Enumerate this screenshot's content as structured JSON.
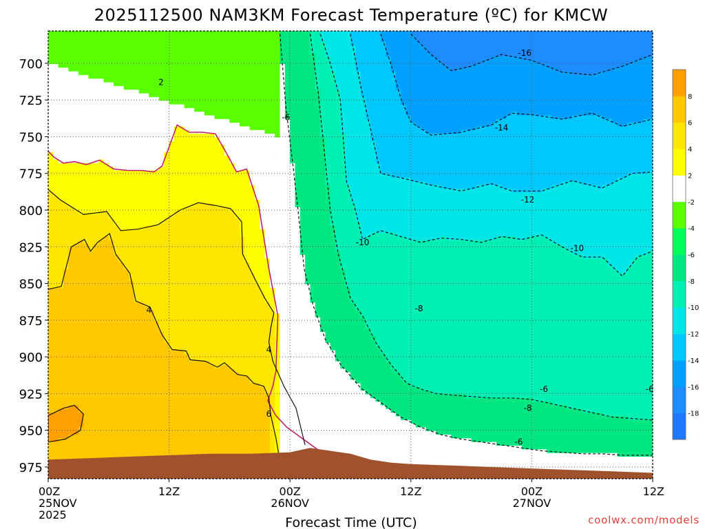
{
  "chart_data": {
    "type": "heatmap",
    "title": "2025112500 NAM3KM Forecast Temperature (ºC) for KMCW",
    "xlabel": "Forecast Time (UTC)",
    "ylabel": "",
    "credit": "coolwx.com/models",
    "x_unit": "hours",
    "xlim": [
      0,
      60
    ],
    "ylim": [
      983,
      678
    ],
    "y_axis": "pressure (hPa), decreasing upward",
    "grid": true,
    "x_ticks": [
      {
        "x": 0,
        "lines": [
          "00Z",
          "25NOV",
          "2025"
        ]
      },
      {
        "x": 12,
        "lines": [
          "12Z"
        ]
      },
      {
        "x": 24,
        "lines": [
          "00Z",
          "26NOV"
        ]
      },
      {
        "x": 36,
        "lines": [
          "12Z"
        ]
      },
      {
        "x": 48,
        "lines": [
          "00Z",
          "27NOV"
        ]
      },
      {
        "x": 60,
        "lines": [
          "12Z"
        ]
      }
    ],
    "y_ticks": [
      700,
      725,
      750,
      775,
      800,
      825,
      850,
      875,
      900,
      925,
      950,
      975
    ],
    "colorbar": {
      "bands": [
        {
          "lo": -20,
          "hi": -18,
          "color": "#1e78ff"
        },
        {
          "lo": -18,
          "hi": -16,
          "color": "#1e8cff"
        },
        {
          "lo": -16,
          "hi": -14,
          "color": "#00a0ff"
        },
        {
          "lo": -14,
          "hi": -12,
          "color": "#00c8ff"
        },
        {
          "lo": -12,
          "hi": -10,
          "color": "#00e6e6"
        },
        {
          "lo": -10,
          "hi": -8,
          "color": "#00f0b4"
        },
        {
          "lo": -8,
          "hi": -6,
          "color": "#00e680"
        },
        {
          "lo": -6,
          "hi": -4,
          "color": "#00ff5a"
        },
        {
          "lo": -4,
          "hi": -2,
          "color": "#5aff00"
        },
        {
          "lo": -2,
          "hi": 2,
          "color": "#ffffff"
        },
        {
          "lo": 2,
          "hi": 4,
          "color": "#ffff00"
        },
        {
          "lo": 4,
          "hi": 6,
          "color": "#ffe600"
        },
        {
          "lo": 6,
          "hi": 8,
          "color": "#ffc800"
        },
        {
          "lo": 8,
          "hi": 10,
          "color": "#ffa000"
        }
      ],
      "tick_labels": [
        "-18",
        "-16",
        "-14",
        "-12",
        "-10",
        "-8",
        "-6",
        "-4",
        "-2",
        "2",
        "4",
        "6",
        "8"
      ]
    },
    "contour_labels": [
      {
        "text": "2",
        "x": 11.2,
        "p": 713
      },
      {
        "text": "-6",
        "x": 23.6,
        "p": 737
      },
      {
        "text": "-16",
        "x": 47.3,
        "p": 693
      },
      {
        "text": "-14",
        "x": 45.0,
        "p": 744
      },
      {
        "text": "-12",
        "x": 47.6,
        "p": 793
      },
      {
        "text": "-10",
        "x": 31.2,
        "p": 822
      },
      {
        "text": "-10",
        "x": 52.5,
        "p": 826
      },
      {
        "text": "-8",
        "x": 36.8,
        "p": 867
      },
      {
        "text": "-6",
        "x": 49.2,
        "p": 922
      },
      {
        "text": "-6",
        "x": 59.7,
        "p": 922
      },
      {
        "text": "-8",
        "x": 47.6,
        "p": 935
      },
      {
        "text": "-6",
        "x": 46.7,
        "p": 958
      },
      {
        "text": "4",
        "x": 10.0,
        "p": 868
      },
      {
        "text": "4",
        "x": 21.9,
        "p": 895
      },
      {
        "text": "6",
        "x": 21.9,
        "p": 939
      }
    ],
    "series": [
      {
        "name": "-16",
        "x": [
          36,
          38,
          40,
          42,
          45,
          48,
          51,
          54,
          57,
          60
        ],
        "p": [
          680,
          694,
          705,
          702,
          694,
          698,
          706,
          708,
          702,
          694
        ]
      },
      {
        "name": "-14",
        "x": [
          33,
          34,
          35,
          36,
          38,
          41,
          44,
          46,
          48,
          51,
          54,
          57,
          60
        ],
        "p": [
          680,
          700,
          724,
          740,
          749,
          747,
          742,
          734,
          735,
          738,
          734,
          743,
          738
        ]
      },
      {
        "name": "-12",
        "x": [
          30,
          31,
          32,
          33,
          35,
          38,
          41,
          44,
          46,
          49,
          52,
          55,
          58,
          60
        ],
        "p": [
          680,
          715,
          745,
          775,
          778,
          783,
          787,
          782,
          787,
          787,
          780,
          785,
          775,
          774
        ]
      },
      {
        "name": "-10",
        "x": [
          27,
          28,
          29,
          29.6,
          30.5,
          31.2,
          33,
          35,
          37,
          39,
          41,
          43,
          45,
          47,
          49,
          51,
          53,
          55,
          57,
          58.5,
          60
        ],
        "p": [
          680,
          700,
          725,
          780,
          800,
          820,
          814,
          818,
          822,
          819,
          820,
          822,
          818,
          820,
          817,
          825,
          832,
          832,
          845,
          832,
          828
        ]
      },
      {
        "name": "-8",
        "x": [
          26,
          26.8,
          27.4,
          28,
          28.8,
          30,
          31.2,
          32.5,
          34,
          35.6,
          37,
          38.5,
          40,
          42,
          44,
          46,
          48,
          50,
          52,
          54,
          56,
          58,
          60
        ],
        "p": [
          680,
          720,
          760,
          800,
          830,
          860,
          872,
          890,
          905,
          918,
          922,
          925,
          926,
          927,
          928,
          928,
          929,
          932,
          935,
          938,
          941,
          942,
          943
        ]
      },
      {
        "name": "-6",
        "x": [
          23,
          23.6,
          24.3,
          24.8,
          25.4,
          26.3,
          27.5,
          29,
          31,
          33,
          35,
          37,
          39,
          41,
          43,
          45,
          47,
          49,
          51,
          53,
          55,
          57,
          59,
          60
        ],
        "p": [
          680,
          730,
          770,
          800,
          840,
          865,
          888,
          905,
          921,
          931,
          941,
          948,
          953,
          956,
          958,
          960,
          962,
          964,
          965,
          966,
          966,
          967,
          967,
          967
        ]
      },
      {
        "name": "2",
        "x": [
          0,
          0.6,
          1.5,
          2.6,
          3.8,
          5.1,
          6.5,
          7.9,
          9.3,
          10.5,
          11.3,
          12.1,
          12.8,
          14,
          15.3,
          16.6,
          17.6,
          18.7,
          19.7,
          20.9,
          21.9,
          22.8,
          22.6,
          22.3,
          21.8,
          22.6,
          23.7,
          24.5,
          25.7,
          26.5,
          27.4
        ],
        "p": [
          760,
          764,
          768,
          767,
          769,
          766,
          772,
          773,
          773,
          774,
          770,
          755,
          742,
          747,
          747,
          748,
          760,
          774,
          772,
          797,
          840,
          872,
          910,
          920,
          930,
          940,
          948,
          952,
          958,
          962,
          966
        ]
      },
      {
        "name": "4",
        "x": [
          0,
          1.2,
          3.5,
          5.8,
          7.2,
          8.9,
          10.9,
          13.1,
          14.9,
          16.7,
          18.1,
          19.2,
          19.3,
          20.6,
          21.5,
          22.4,
          22.1,
          21.9,
          22.3,
          23.4,
          24.6,
          25.5
        ],
        "p": [
          786,
          793,
          803,
          801,
          814,
          813,
          810,
          800,
          795,
          797,
          799,
          808,
          830,
          848,
          860,
          870,
          880,
          890,
          903,
          920,
          935,
          960
        ]
      },
      {
        "name": "6",
        "x": [
          0,
          1.3,
          2.3,
          3.6,
          4.2,
          4.9,
          6.1,
          6.7,
          8.1,
          8.7,
          10.1,
          11.3,
          12.3,
          13.7,
          14.1,
          15.6,
          16.8,
          17.5,
          18.8,
          19.7,
          20.4,
          21.4,
          21.9,
          22.1,
          22.6,
          23.1
        ],
        "p": [
          854,
          852,
          825,
          820,
          828,
          822,
          816,
          830,
          843,
          862,
          866,
          885,
          895,
          896,
          902,
          903,
          907,
          904,
          912,
          913,
          918,
          920,
          928,
          940,
          955,
          975
        ]
      },
      {
        "name": "8",
        "x": [
          0,
          1.5,
          2.6,
          3.5,
          3.2,
          1.7,
          0
        ],
        "p": [
          940,
          935,
          933,
          939,
          950,
          956,
          958
        ]
      }
    ],
    "terrain_surface_p": [
      {
        "x": 0,
        "p": 970
      },
      {
        "x": 4,
        "p": 969
      },
      {
        "x": 8,
        "p": 968
      },
      {
        "x": 12,
        "p": 967
      },
      {
        "x": 16,
        "p": 966
      },
      {
        "x": 20,
        "p": 966
      },
      {
        "x": 24,
        "p": 965
      },
      {
        "x": 26,
        "p": 962
      },
      {
        "x": 28,
        "p": 964
      },
      {
        "x": 30,
        "p": 966
      },
      {
        "x": 32,
        "p": 970
      },
      {
        "x": 34,
        "p": 972
      },
      {
        "x": 36,
        "p": 973
      },
      {
        "x": 40,
        "p": 974
      },
      {
        "x": 44,
        "p": 975
      },
      {
        "x": 48,
        "p": 976
      },
      {
        "x": 52,
        "p": 977
      },
      {
        "x": 56,
        "p": 978
      },
      {
        "x": 60,
        "p": 979
      }
    ]
  }
}
